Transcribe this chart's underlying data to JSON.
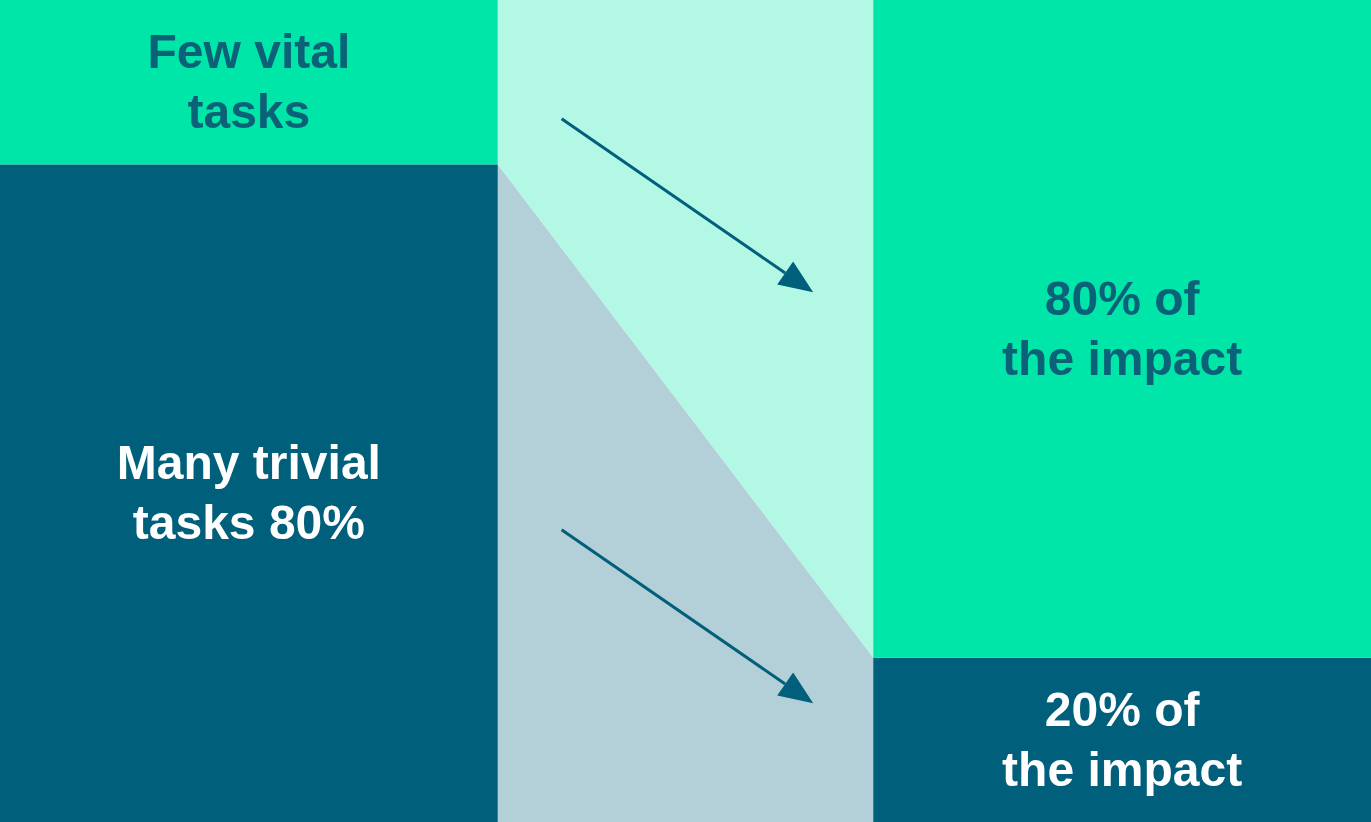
{
  "chart_data": {
    "type": "bar",
    "stacked": true,
    "categories": [
      null,
      null
    ],
    "series": [
      {
        "color": "#005f7a",
        "values": [
          80,
          20
        ],
        "value_labels": [
          "Many trivial\ntasks 80%",
          "20% of\nthe impact"
        ]
      },
      {
        "color": "#00e5a8",
        "values": [
          20,
          80
        ],
        "value_labels": [
          "Few vital\ntasks",
          "80% of\nthe impact"
        ]
      }
    ]
  }
}
